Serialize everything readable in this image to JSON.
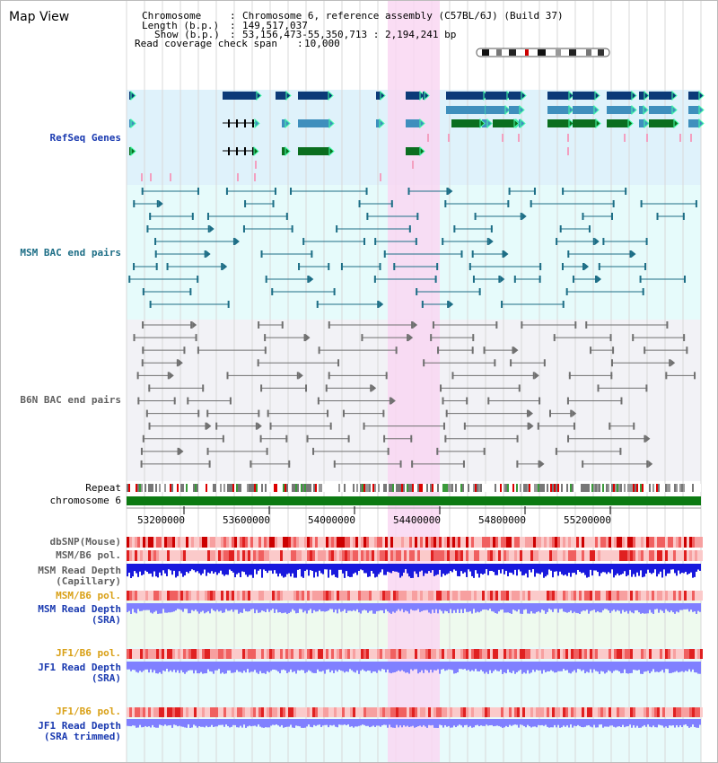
{
  "view": {
    "title": "Map View",
    "chromosome_key": "Chromosome",
    "chromosome_val": "Chromosome 6, reference assembly (C57BL/6J) (Build 37)",
    "length_key": "Length (b.p.)",
    "length_val": "149,517,037",
    "show_key": "Show (b.p.)",
    "show_val": "53,156,473-55,350,713 : 2,194,241 bp",
    "coverage_key": "Read coverage check span",
    "coverage_val": "10,000"
  },
  "tracks": {
    "refseq": "RefSeq Genes",
    "msm_bac": "MSM BAC end pairs",
    "b6n_bac": "B6N BAC end pairs",
    "repeat": "Repeat",
    "chromosome": "chromosome 6",
    "dbsnp": "dbSNP(Mouse)",
    "msm_b6_pol": "MSM/B6 pol.",
    "msm_depth_cap_1": "MSM Read Depth",
    "msm_depth_cap_2": "(Capillary)",
    "msm_b6_pol_sra": "MSM/B6 pol.",
    "msm_depth_sra_1": "MSM Read Depth",
    "msm_depth_sra_2": "(SRA)",
    "jf1_b6_pol": "JF1/B6 pol.",
    "jf1_depth_1": "JF1 Read Depth",
    "jf1_depth_2": "(SRA)",
    "jf1_b6_pol_t": "JF1/B6 pol.",
    "jf1_depth_t1": "JF1 Read Depth",
    "jf1_depth_t2": "(SRA trimmed)"
  },
  "axis": {
    "ticks": [
      "53200000",
      "53600000",
      "54000000",
      "54400000",
      "54800000",
      "55200000"
    ]
  },
  "colors": {
    "highlight": "#f9d7f2",
    "refseq_bg": "#dff2fb",
    "msm_bg": "#e6fbfb",
    "b6n_bg": "#f2f2f6",
    "gene_dark": "#0b3a78",
    "gene_mid": "#3f8fbd",
    "gene_green": "#0b6e1f",
    "msm_line": "#1d6e86",
    "b6n_line": "#707070",
    "chromosome": "#0c7a12",
    "label_blue": "#1a3ab0",
    "label_teal": "#1d6e86",
    "label_gray": "#606060",
    "label_orange": "#d9a016",
    "depth_blue": "#1919dd",
    "depth_light": "#8080ff"
  }
}
